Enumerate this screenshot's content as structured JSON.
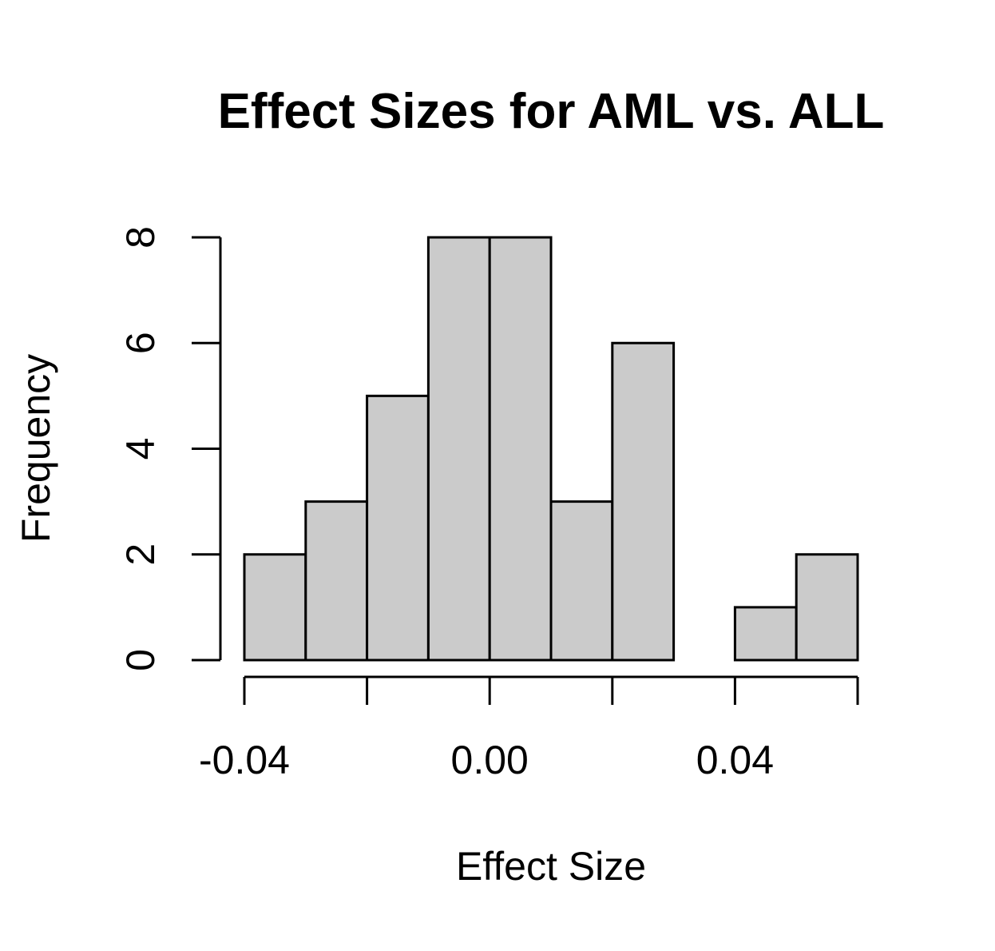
{
  "chart_data": {
    "type": "bar",
    "subtype": "histogram",
    "title": "Effect Sizes for AML vs. ALL",
    "xlabel": "Effect Size",
    "ylabel": "Frequency",
    "bins": [
      [
        -0.04,
        -0.03
      ],
      [
        -0.03,
        -0.02
      ],
      [
        -0.02,
        -0.01
      ],
      [
        -0.01,
        0.0
      ],
      [
        0.0,
        0.01
      ],
      [
        0.01,
        0.02
      ],
      [
        0.02,
        0.03
      ],
      [
        0.03,
        0.04
      ],
      [
        0.04,
        0.05
      ],
      [
        0.05,
        0.06
      ]
    ],
    "values": [
      2,
      3,
      5,
      8,
      8,
      3,
      6,
      0,
      1,
      2
    ],
    "xlim": [
      -0.04,
      0.06
    ],
    "ylim": [
      0,
      8
    ],
    "x_ticks": [
      -0.04,
      -0.02,
      0.0,
      0.02,
      0.04,
      0.06
    ],
    "x_tick_labels": [
      {
        "value": -0.04,
        "label": "-0.04"
      },
      {
        "value": 0.0,
        "label": "0.00"
      },
      {
        "value": 0.04,
        "label": "0.04"
      }
    ],
    "y_ticks": [
      0,
      2,
      4,
      6,
      8
    ],
    "y_tick_labels": [
      "0",
      "2",
      "4",
      "6",
      "8"
    ],
    "bar_fill": "#cbcbcb",
    "grid": false
  }
}
